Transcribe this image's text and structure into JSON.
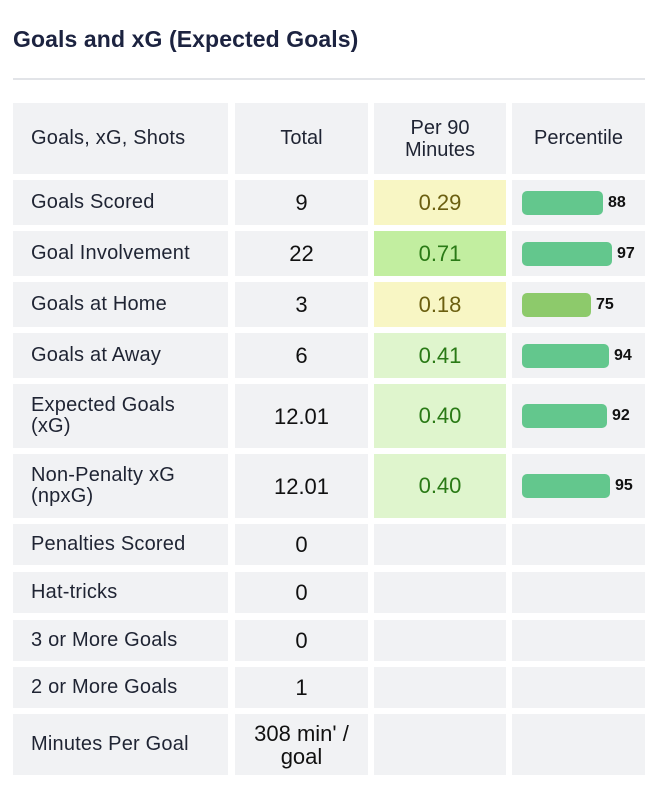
{
  "page": {
    "title": "Goals and xG (Expected Goals)"
  },
  "table": {
    "headers": [
      "Goals, xG, Shots",
      "Total",
      "Per 90\nMinutes",
      "Percentile"
    ],
    "rows": [
      {
        "label": "Goals Scored",
        "total": "9",
        "per90": "0.29",
        "percentile": 88,
        "per90_bg": "#f8f6c4",
        "per90_color": "#6b5f10",
        "bar_color": "#63c78d"
      },
      {
        "label": "Goal Involvement",
        "total": "22",
        "per90": "0.71",
        "percentile": 97,
        "per90_bg": "#c2eea0",
        "per90_color": "#2a7a16",
        "bar_color": "#63c78d"
      },
      {
        "label": "Goals at Home",
        "total": "3",
        "per90": "0.18",
        "percentile": 75,
        "per90_bg": "#f8f6c4",
        "per90_color": "#6b5f10",
        "bar_color": "#8dca6b"
      },
      {
        "label": "Goals at Away",
        "total": "6",
        "per90": "0.41",
        "percentile": 94,
        "per90_bg": "#dff5cd",
        "per90_color": "#2a7a16",
        "bar_color": "#63c78d"
      },
      {
        "label": "Expected Goals\n(xG)",
        "total": "12.01",
        "per90": "0.40",
        "percentile": 92,
        "per90_bg": "#dff5cd",
        "per90_color": "#2a7a16",
        "bar_color": "#63c78d"
      },
      {
        "label": "Non-Penalty xG\n(npxG)",
        "total": "12.01",
        "per90": "0.40",
        "percentile": 95,
        "per90_bg": "#dff5cd",
        "per90_color": "#2a7a16",
        "bar_color": "#63c78d"
      },
      {
        "label": "Penalties Scored",
        "total": "0",
        "per90": "",
        "percentile": null
      },
      {
        "label": "Hat-tricks",
        "total": "0",
        "per90": "",
        "percentile": null
      },
      {
        "label": "3 or More Goals",
        "total": "0",
        "per90": "",
        "percentile": null
      },
      {
        "label": "2 or More Goals",
        "total": "1",
        "per90": "",
        "percentile": null
      },
      {
        "label": "Minutes Per Goal",
        "total": "308 min' /\ngoal",
        "per90": "",
        "percentile": null
      }
    ]
  }
}
